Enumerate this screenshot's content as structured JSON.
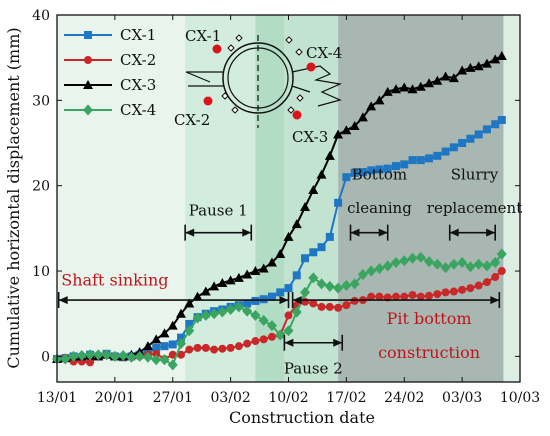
{
  "chart_data": {
    "type": "line",
    "xlabel": "Construction date",
    "ylabel": "Cumulative horizontal displacement (mm)",
    "x_ticks": [
      "13/01",
      "20/01",
      "27/01",
      "03/02",
      "10/02",
      "17/02",
      "24/02",
      "03/03",
      "10/03"
    ],
    "x_ticks_days": [
      0,
      7,
      14,
      21,
      28,
      35,
      42,
      49,
      56
    ],
    "xlim_days": [
      0,
      56
    ],
    "ylim": [
      -3,
      40
    ],
    "y_ticks": [
      0,
      10,
      20,
      30,
      40
    ],
    "grid": false,
    "legend_position": "top-left",
    "phases": [
      {
        "days": [
          0,
          15.5
        ],
        "color": "#e8f4ec"
      },
      {
        "days": [
          15.5,
          28
        ],
        "color": "#d2ecdd"
      },
      {
        "days": [
          24,
          27.5
        ],
        "color": "#b3dcc4"
      },
      {
        "days": [
          27.5,
          34
        ],
        "color": "#c2e3d0"
      },
      {
        "days": [
          34,
          54
        ],
        "color": "#a9b7b2"
      },
      {
        "days": [
          54,
          56
        ],
        "color": "#dceee4"
      }
    ],
    "annotations": [
      {
        "text": "Pause 1",
        "color": "black",
        "x": 19.5,
        "y": 16.5,
        "arrow": [
          15.5,
          23.5
        ],
        "arrow_y": 14.5
      },
      {
        "text": "Shaft sinking",
        "color": "red",
        "x": 7,
        "y": 8.3,
        "arrow": [
          0.2,
          28
        ],
        "arrow_y": 6.6
      },
      {
        "text": "Pause 2",
        "color": "black",
        "x": 31,
        "y": -2,
        "arrow": [
          27.5,
          34.5
        ],
        "arrow_y": 1.6
      },
      {
        "text": "Pit bottom",
        "color": "red",
        "x": 45,
        "y": 3.8,
        "arrow": [
          28.5,
          53.5
        ],
        "arrow_y": 6.6
      },
      {
        "text": "construction",
        "color": "red",
        "x": 45,
        "y": -0.2
      },
      {
        "text": "Bottom",
        "color": "black",
        "x": 39,
        "y": 20.7
      },
      {
        "text": "cleaning",
        "color": "black",
        "x": 39,
        "y": 16.8,
        "arrow": [
          35.5,
          40
        ],
        "arrow_y": 14.5
      },
      {
        "text": "Slurry",
        "color": "black",
        "x": 50.5,
        "y": 20.7
      },
      {
        "text": "replacement",
        "color": "black",
        "x": 50.5,
        "y": 16.8,
        "arrow": [
          47.5,
          53
        ],
        "arrow_y": 14.5
      }
    ],
    "inset": {
      "labels": [
        "CX-1",
        "CX-2",
        "CX-3",
        "CX-4"
      ]
    },
    "series": [
      {
        "name": "CX-1",
        "color": "#1f77c4",
        "marker": "square",
        "points": [
          [
            0,
            -0.3
          ],
          [
            1,
            -0.2
          ],
          [
            2,
            0
          ],
          [
            3,
            -0.1
          ],
          [
            4,
            0.2
          ],
          [
            5,
            0
          ],
          [
            6,
            0.3
          ],
          [
            7,
            0
          ],
          [
            8,
            -0.1
          ],
          [
            9,
            0
          ],
          [
            10,
            0.2
          ],
          [
            11,
            0.6
          ],
          [
            12,
            1
          ],
          [
            13,
            1.2
          ],
          [
            14,
            1.4
          ],
          [
            15,
            2.2
          ],
          [
            16,
            3.8
          ],
          [
            17,
            4.6
          ],
          [
            18,
            5
          ],
          [
            19,
            5.3
          ],
          [
            20,
            5.5
          ],
          [
            21,
            5.8
          ],
          [
            22,
            6
          ],
          [
            23,
            6.2
          ],
          [
            24,
            6.5
          ],
          [
            25,
            6.7
          ],
          [
            26,
            7
          ],
          [
            27,
            7.5
          ],
          [
            28,
            8
          ],
          [
            29,
            9.5
          ],
          [
            30,
            11.5
          ],
          [
            31,
            12.2
          ],
          [
            32,
            12.8
          ],
          [
            33,
            14
          ],
          [
            34,
            18
          ],
          [
            35,
            21
          ],
          [
            36,
            21.5
          ],
          [
            37,
            21.6
          ],
          [
            38,
            21.8
          ],
          [
            39,
            21.9
          ],
          [
            40,
            22
          ],
          [
            41,
            22.3
          ],
          [
            42,
            22.5
          ],
          [
            43,
            23
          ],
          [
            44,
            23
          ],
          [
            45,
            23.2
          ],
          [
            46,
            23.5
          ],
          [
            47,
            24
          ],
          [
            48,
            24.5
          ],
          [
            49,
            25
          ],
          [
            50,
            25.5
          ],
          [
            51,
            26
          ],
          [
            52,
            26.6
          ],
          [
            53,
            27.2
          ],
          [
            53.8,
            27.7
          ]
        ]
      },
      {
        "name": "CX-2",
        "color": "#c8282a",
        "marker": "circle",
        "points": [
          [
            0,
            -0.3
          ],
          [
            1,
            -0.2
          ],
          [
            2,
            -0.6
          ],
          [
            3,
            -0.6
          ],
          [
            4,
            -0.7
          ],
          [
            5,
            0
          ],
          [
            6,
            0.2
          ],
          [
            7,
            0
          ],
          [
            8,
            -0.1
          ],
          [
            9,
            -0.1
          ],
          [
            10,
            0
          ],
          [
            11,
            0.2
          ],
          [
            12,
            0.3
          ],
          [
            13,
            -0.3
          ],
          [
            14,
            0.2
          ],
          [
            15,
            0.2
          ],
          [
            16,
            0.8
          ],
          [
            17,
            1
          ],
          [
            18,
            1
          ],
          [
            19,
            0.8
          ],
          [
            20,
            0.9
          ],
          [
            21,
            1
          ],
          [
            22,
            1.2
          ],
          [
            23,
            1.5
          ],
          [
            24,
            1.8
          ],
          [
            25,
            2
          ],
          [
            26,
            2.3
          ],
          [
            27,
            2.5
          ],
          [
            28,
            4.8
          ],
          [
            29,
            6
          ],
          [
            30,
            6.4
          ],
          [
            31,
            6.2
          ],
          [
            32,
            5.8
          ],
          [
            33,
            5.8
          ],
          [
            34,
            5.7
          ],
          [
            35,
            6
          ],
          [
            36,
            6.5
          ],
          [
            37,
            6.6
          ],
          [
            38,
            7
          ],
          [
            39,
            7
          ],
          [
            40,
            6.9
          ],
          [
            41,
            7
          ],
          [
            42,
            7
          ],
          [
            43,
            7.2
          ],
          [
            44,
            7
          ],
          [
            45,
            7.1
          ],
          [
            46,
            7.3
          ],
          [
            47,
            7.5
          ],
          [
            48,
            7.6
          ],
          [
            49,
            7.8
          ],
          [
            50,
            8
          ],
          [
            51,
            8.3
          ],
          [
            52,
            8.7
          ],
          [
            53,
            9.3
          ],
          [
            53.8,
            10
          ]
        ]
      },
      {
        "name": "CX-3",
        "color": "#000000",
        "marker": "triangle",
        "points": [
          [
            0,
            -0.3
          ],
          [
            1,
            -0.2
          ],
          [
            2,
            0
          ],
          [
            3,
            0
          ],
          [
            4,
            0.1
          ],
          [
            5,
            0
          ],
          [
            6,
            0.2
          ],
          [
            7,
            0
          ],
          [
            8,
            0
          ],
          [
            9,
            0.2
          ],
          [
            10,
            0.5
          ],
          [
            11,
            1.2
          ],
          [
            12,
            2
          ],
          [
            13,
            2.7
          ],
          [
            14,
            3.6
          ],
          [
            15,
            5
          ],
          [
            16,
            6.2
          ],
          [
            17,
            7
          ],
          [
            18,
            7.6
          ],
          [
            19,
            8.2
          ],
          [
            20,
            8.6
          ],
          [
            21,
            8.9
          ],
          [
            22,
            9.2
          ],
          [
            23,
            9.6
          ],
          [
            24,
            10
          ],
          [
            25,
            10.3
          ],
          [
            26,
            11
          ],
          [
            27,
            12
          ],
          [
            28,
            14
          ],
          [
            29,
            15.5
          ],
          [
            30,
            17.5
          ],
          [
            31,
            19.5
          ],
          [
            32,
            21.3
          ],
          [
            33,
            23.5
          ],
          [
            34,
            26
          ],
          [
            35,
            26.5
          ],
          [
            36,
            27
          ],
          [
            37,
            28
          ],
          [
            38,
            29.3
          ],
          [
            39,
            30
          ],
          [
            40,
            31
          ],
          [
            41,
            31.3
          ],
          [
            42,
            31.5
          ],
          [
            43,
            31.3
          ],
          [
            44,
            31.6
          ],
          [
            45,
            32
          ],
          [
            46,
            32.3
          ],
          [
            47,
            32.8
          ],
          [
            48,
            32.6
          ],
          [
            49,
            33.5
          ],
          [
            50,
            33.8
          ],
          [
            51,
            34
          ],
          [
            52,
            34.3
          ],
          [
            53,
            34.8
          ],
          [
            53.8,
            35.2
          ]
        ]
      },
      {
        "name": "CX-4",
        "color": "#3aa561",
        "marker": "diamond",
        "points": [
          [
            0,
            -0.3
          ],
          [
            1,
            -0.3
          ],
          [
            2,
            0
          ],
          [
            3,
            0.1
          ],
          [
            4,
            0.2
          ],
          [
            5,
            0.2
          ],
          [
            6,
            0.2
          ],
          [
            7,
            0
          ],
          [
            8,
            0.1
          ],
          [
            9,
            -0.1
          ],
          [
            10,
            0
          ],
          [
            11,
            -0.1
          ],
          [
            12,
            -0.4
          ],
          [
            13,
            -0.4
          ],
          [
            14,
            -1
          ],
          [
            15,
            1.5
          ],
          [
            16,
            3
          ],
          [
            17,
            4.5
          ],
          [
            18,
            4.8
          ],
          [
            19,
            5
          ],
          [
            20,
            5.2
          ],
          [
            21,
            5.5
          ],
          [
            22,
            5.8
          ],
          [
            23,
            5.3
          ],
          [
            24,
            4.8
          ],
          [
            25,
            4.2
          ],
          [
            26,
            3.6
          ],
          [
            27,
            2.5
          ],
          [
            28,
            3
          ],
          [
            29,
            5.2
          ],
          [
            30,
            7.5
          ],
          [
            31,
            9.2
          ],
          [
            32,
            8.5
          ],
          [
            33,
            8.2
          ],
          [
            34,
            8
          ],
          [
            35,
            8.3
          ],
          [
            36,
            8.5
          ],
          [
            37,
            9.6
          ],
          [
            38,
            10
          ],
          [
            39,
            10.3
          ],
          [
            40,
            10.6
          ],
          [
            41,
            11
          ],
          [
            42,
            11.2
          ],
          [
            43,
            11.5
          ],
          [
            44,
            11.6
          ],
          [
            45,
            11.1
          ],
          [
            46,
            10.8
          ],
          [
            47,
            10.4
          ],
          [
            48,
            10.8
          ],
          [
            49,
            11
          ],
          [
            50,
            10.5
          ],
          [
            51,
            10.8
          ],
          [
            52,
            10.6
          ],
          [
            53,
            11
          ],
          [
            53.8,
            12
          ]
        ]
      }
    ]
  }
}
